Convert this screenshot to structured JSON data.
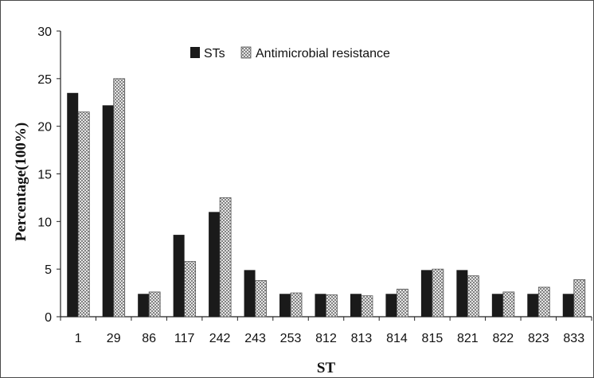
{
  "chart_data": {
    "type": "bar",
    "title": "",
    "xlabel": "ST",
    "ylabel": "Percentage(100%)",
    "ylim": [
      0,
      30
    ],
    "yticks": [
      0,
      5,
      10,
      15,
      20,
      25,
      30
    ],
    "grid": false,
    "legend_position": "top-center",
    "categories": [
      "1",
      "29",
      "86",
      "117",
      "242",
      "243",
      "253",
      "812",
      "813",
      "814",
      "815",
      "821",
      "822",
      "823",
      "833"
    ],
    "series": [
      {
        "name": "STs",
        "color": "#1a1a1a",
        "pattern": "solid",
        "values": [
          23.5,
          22.2,
          2.4,
          8.6,
          11.0,
          4.9,
          2.4,
          2.4,
          2.4,
          2.4,
          4.9,
          4.9,
          2.4,
          2.4,
          2.4
        ]
      },
      {
        "name": "Antimicrobial resistance",
        "color": "#9a9a9a",
        "pattern": "crosshatch",
        "values": [
          21.5,
          25.0,
          2.6,
          5.8,
          12.5,
          3.8,
          2.5,
          2.3,
          2.2,
          2.9,
          5.0,
          4.3,
          2.6,
          3.1,
          3.9
        ]
      }
    ]
  }
}
